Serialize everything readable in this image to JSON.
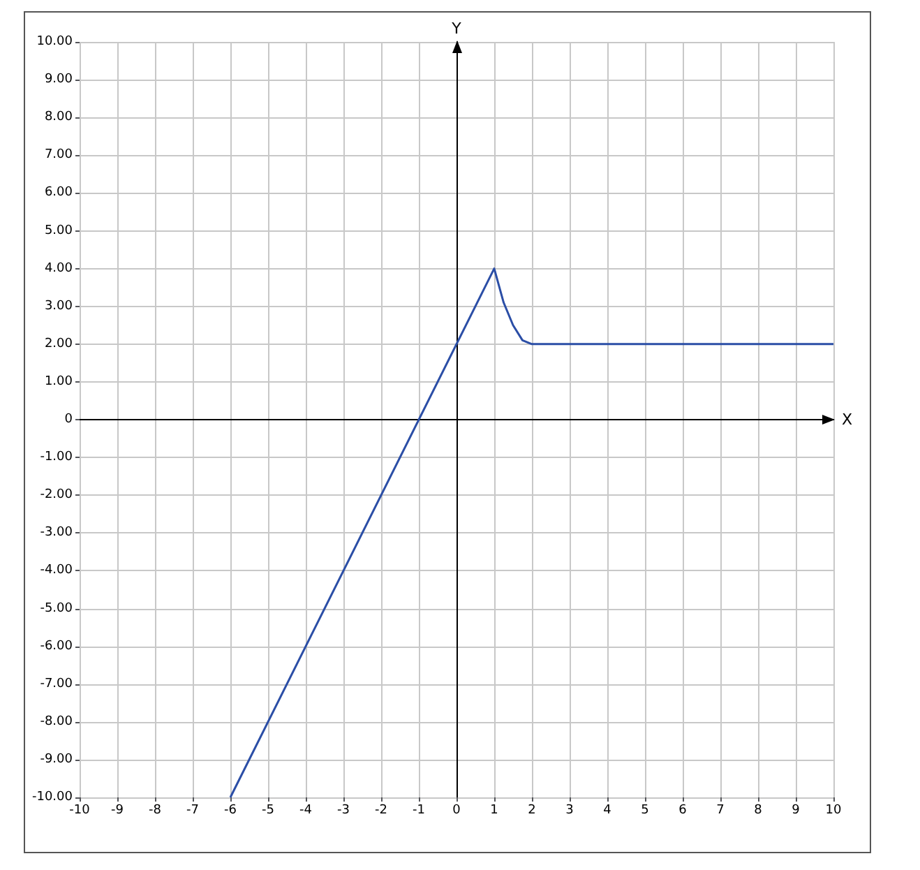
{
  "chart_data": {
    "type": "line",
    "xlabel": "X",
    "ylabel": "Y",
    "xlim": [
      -10,
      10
    ],
    "xticks": [
      -10,
      -9,
      -8,
      -7,
      -6,
      -5,
      -4,
      -3,
      -2,
      -1,
      0,
      1,
      2,
      3,
      4,
      5,
      6,
      7,
      8,
      9,
      10
    ],
    "ylim": [
      -10,
      10
    ],
    "yticks": [
      {
        "value": -10,
        "label": "-10.00"
      },
      {
        "value": -9,
        "label": "-9.00"
      },
      {
        "value": -8,
        "label": "-8.00"
      },
      {
        "value": -7,
        "label": "-7.00"
      },
      {
        "value": -6,
        "label": "-6.00"
      },
      {
        "value": -5,
        "label": "-5.00"
      },
      {
        "value": -4,
        "label": "-4.00"
      },
      {
        "value": -3,
        "label": "-3.00"
      },
      {
        "value": -2,
        "label": "-2.00"
      },
      {
        "value": -1,
        "label": "-1.00"
      },
      0,
      {
        "value": 1,
        "label": "1.00"
      },
      {
        "value": 2,
        "label": "2.00"
      },
      {
        "value": 3,
        "label": "3.00"
      },
      {
        "value": 4,
        "label": "4.00"
      },
      {
        "value": 5,
        "label": "5.00"
      },
      {
        "value": 6,
        "label": "6.00"
      },
      {
        "value": 7,
        "label": "7.00"
      },
      {
        "value": 8,
        "label": "8.00"
      },
      {
        "value": 9,
        "label": "9.00"
      },
      {
        "value": 10,
        "label": "10.00"
      }
    ],
    "series": [
      {
        "color": "#2b4ea6",
        "x": [
          -6,
          1,
          1.25,
          1.5,
          1.75,
          2,
          10
        ],
        "values": [
          -10,
          4,
          3.1,
          2.5,
          2.1,
          2,
          2
        ]
      }
    ],
    "grid": true,
    "marker": "none",
    "line_style": "solid"
  }
}
